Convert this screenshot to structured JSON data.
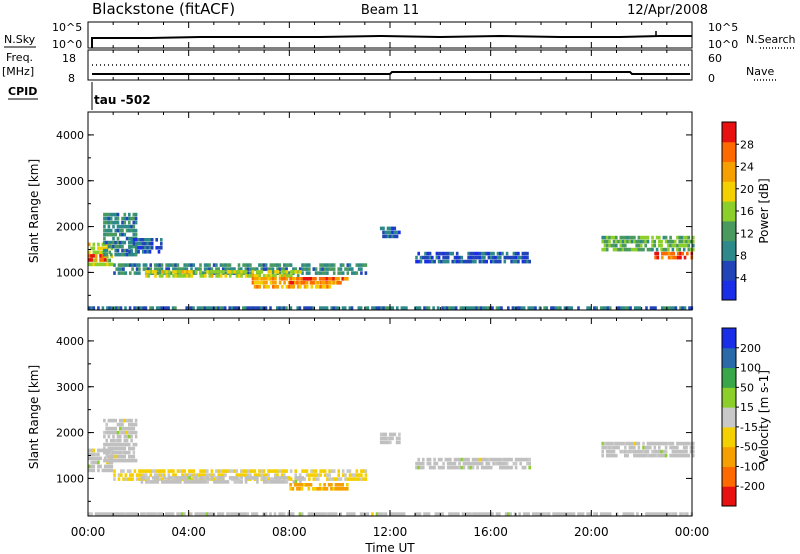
{
  "header": {
    "station": "Blackstone (fitACF)",
    "beam": "Beam 11",
    "date": "12/Apr/2008"
  },
  "params": {
    "nsky_label": "N.Sky",
    "nsky_ticks": [
      "10^5",
      "10^0"
    ],
    "nsearch_label": "N.Search",
    "nsearch_ticks": [
      "10^5",
      "10^0"
    ],
    "freq_label": "Freq.",
    "freq_unit": "[MHz]",
    "freq_ticks": [
      "18",
      "8"
    ],
    "nave_label": "Nave",
    "nave_ticks": [
      "60",
      "0"
    ],
    "cpid_label": "CPID",
    "cpid_value": "tau -502"
  },
  "xaxis": {
    "title": "Time UT",
    "ticks": [
      "00:00",
      "04:00",
      "08:00",
      "12:00",
      "16:00",
      "20:00",
      "00:00"
    ],
    "range_hours": [
      0,
      24
    ]
  },
  "colors": {
    "power": [
      "#1a2ee8",
      "#2145b8",
      "#2e8a8a",
      "#4a9a60",
      "#8ccf2a",
      "#f5d000",
      "#f5a000",
      "#ff6a00",
      "#e81010"
    ],
    "velocity": [
      "#e81010",
      "#ff6a00",
      "#f5a000",
      "#f5d000",
      "#c8c8c8",
      "#8ccf2a",
      "#3aa64a",
      "#2a6aa8",
      "#1a2ee8"
    ],
    "ground_scatter": "#c0c0c0"
  },
  "chart_data": [
    {
      "type": "heatmap",
      "name": "power",
      "ylabel": "Slant Range [km]",
      "yticks": [
        "1000",
        "2000",
        "3000",
        "4000"
      ],
      "ylim": [
        180,
        4500
      ],
      "colorbar": {
        "label": "Power [dB]",
        "ticks": [
          "4",
          "8",
          "12",
          "16",
          "20",
          "24",
          "28"
        ],
        "range": [
          0,
          32
        ]
      },
      "regions": [
        {
          "t": [
            0.0,
            0.9
          ],
          "r": [
            1200,
            1650
          ],
          "v": 18
        },
        {
          "t": [
            0.0,
            0.7
          ],
          "r": [
            1250,
            1400
          ],
          "v": 28
        },
        {
          "t": [
            0.6,
            1.9
          ],
          "r": [
            1350,
            2300
          ],
          "v": 10
        },
        {
          "t": [
            1.6,
            2.9
          ],
          "r": [
            1450,
            1750
          ],
          "v": 6
        },
        {
          "t": [
            1.0,
            11.0
          ],
          "r": [
            950,
            1200
          ],
          "v": 10
        },
        {
          "t": [
            2.0,
            8.5
          ],
          "r": [
            900,
            1050
          ],
          "v": 18
        },
        {
          "t": [
            6.5,
            10.0
          ],
          "r": [
            700,
            900
          ],
          "v": 22
        },
        {
          "t": [
            8.0,
            10.3
          ],
          "r": [
            780,
            900
          ],
          "v": 26
        },
        {
          "t": [
            11.6,
            12.4
          ],
          "r": [
            1800,
            2000
          ],
          "v": 6
        },
        {
          "t": [
            13.0,
            17.5
          ],
          "r": [
            1200,
            1450
          ],
          "v": 6
        },
        {
          "t": [
            20.4,
            24.0
          ],
          "r": [
            1500,
            1800
          ],
          "v": 14
        },
        {
          "t": [
            22.5,
            24.0
          ],
          "r": [
            1300,
            1450
          ],
          "v": 28
        },
        {
          "t": [
            0.0,
            24.0
          ],
          "r": [
            180,
            260
          ],
          "v": 8
        }
      ]
    },
    {
      "type": "heatmap",
      "name": "velocity",
      "ylabel": "Slant Range [km]",
      "yticks": [
        "1000",
        "2000",
        "3000",
        "4000"
      ],
      "ylim": [
        180,
        4500
      ],
      "colorbar": {
        "label": "Velocity [m s-1]",
        "ticks": [
          "-200",
          "-100",
          "-50",
          "-15",
          "15",
          "50",
          "100",
          "200"
        ]
      },
      "regions": [
        {
          "t": [
            0.0,
            0.9
          ],
          "r": [
            1200,
            1650
          ],
          "v": 0
        },
        {
          "t": [
            0.6,
            1.9
          ],
          "r": [
            1350,
            2300
          ],
          "v": 0
        },
        {
          "t": [
            1.0,
            11.0
          ],
          "r": [
            950,
            1200
          ],
          "v": -20
        },
        {
          "t": [
            2.0,
            8.5
          ],
          "r": [
            900,
            1050
          ],
          "v": 0
        },
        {
          "t": [
            8.0,
            10.3
          ],
          "r": [
            780,
            900
          ],
          "v": -60
        },
        {
          "t": [
            11.6,
            12.4
          ],
          "r": [
            1800,
            2000
          ],
          "v": 0
        },
        {
          "t": [
            13.0,
            17.5
          ],
          "r": [
            1200,
            1450
          ],
          "v": 0
        },
        {
          "t": [
            20.4,
            24.0
          ],
          "r": [
            1500,
            1800
          ],
          "v": 0
        },
        {
          "t": [
            0.0,
            24.0
          ],
          "r": [
            180,
            260
          ],
          "v": 0
        }
      ]
    }
  ]
}
